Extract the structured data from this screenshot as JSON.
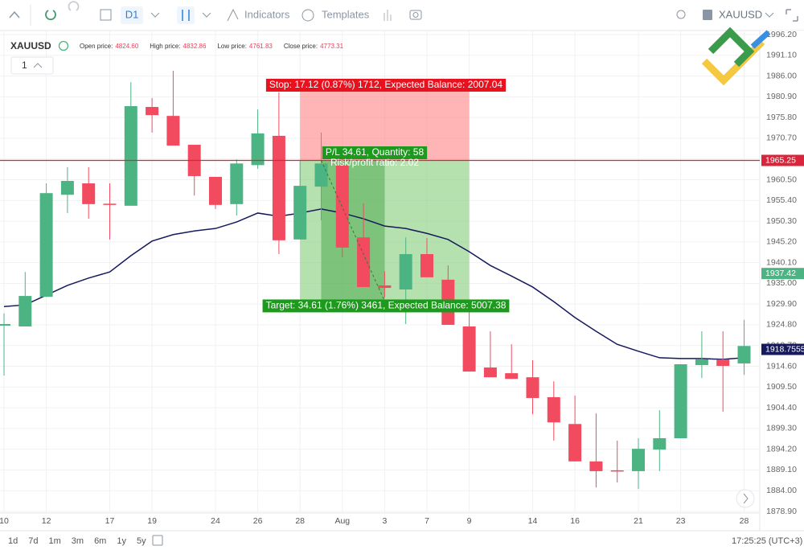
{
  "toolbar": {
    "timeframe": "D1",
    "indicators": "Indicators",
    "templates": "Templates",
    "symbol": "XAUUSD"
  },
  "header": {
    "symbol": "XAUUSD",
    "fields": [
      {
        "label": "Open price:",
        "value": "4824.60"
      },
      {
        "label": "High price:",
        "value": "4832.86"
      },
      {
        "label": "Low price:",
        "value": "4761.83"
      },
      {
        "label": "Close price:",
        "value": "4773.31"
      }
    ],
    "pane": "1"
  },
  "chart_data": {
    "type": "candlestick",
    "categories": [
      "10",
      null,
      "12",
      null,
      null,
      "17",
      null,
      "19",
      null,
      null,
      "24",
      null,
      "26",
      null,
      "28",
      null,
      "Aug",
      null,
      "3",
      null,
      "7",
      null,
      "9",
      null,
      null,
      "14",
      null,
      "16",
      null,
      null,
      "21",
      null,
      "23",
      null,
      null,
      "28"
    ],
    "open": [
      1924.6,
      1924.4,
      1931.7,
      1956.8,
      1959.6,
      1954.6,
      1954.1,
      1978.4,
      1976.2,
      1969.1,
      1961.2,
      1954.5,
      1964.1,
      1971.3,
      1945.8,
      1958.8,
      1964.1,
      1946.3,
      1934.5,
      1933.5,
      1942.2,
      1935.9,
      1924.4,
      1914.3,
      1912.9,
      1911.9,
      1907.0,
      1900.4,
      1891.2,
      1889.0,
      1888.8,
      1894.1,
      1896.9,
      1914.9,
      1916.3,
      1915.3
    ],
    "high": [
      1927.6,
      1937.8,
      1959.6,
      1963.6,
      1963.6,
      1959.6,
      1984.5,
      1980.6,
      1987.3,
      1969.1,
      1961.2,
      1965.5,
      1977.8,
      1982.0,
      1965.1,
      1972.1,
      1966.1,
      1954.7,
      1938.0,
      1946.3,
      1946.1,
      1939.4,
      1928.0,
      1923.2,
      1920.0,
      1916.1,
      1910.9,
      1907.4,
      1903.0,
      1896.3,
      1896.9,
      1903.8,
      1915.1,
      1923.2,
      1923.2,
      1926.0
    ],
    "low": [
      1912.3,
      1924.4,
      1931.7,
      1952.3,
      1950.9,
      1945.8,
      1954.1,
      1972.1,
      1968.9,
      1956.6,
      1953.3,
      1951.7,
      1963.2,
      1942.2,
      1945.8,
      1950.5,
      1941.4,
      1934.1,
      1931.5,
      1925.0,
      1936.5,
      1924.8,
      1913.3,
      1911.9,
      1911.5,
      1902.8,
      1896.3,
      1891.2,
      1884.8,
      1886.0,
      1884.4,
      1888.8,
      1896.9,
      1911.7,
      1903.4,
      1912.5
    ],
    "close": [
      1925.0,
      1931.9,
      1957.2,
      1960.2,
      1954.5,
      1954.3,
      1978.6,
      1976.4,
      1968.9,
      1961.4,
      1954.3,
      1964.5,
      1971.9,
      1945.6,
      1959.0,
      1964.5,
      1943.8,
      1934.1,
      1933.9,
      1942.2,
      1936.5,
      1924.8,
      1913.3,
      1911.9,
      1911.5,
      1906.8,
      1900.8,
      1891.2,
      1888.8,
      1888.7,
      1894.3,
      1896.9,
      1915.1,
      1916.3,
      1914.7,
      1919.6
    ],
    "up_color": "#4cb383",
    "down_color": "#f24a5e",
    "ma": {
      "color": "#16195c",
      "values": [
        1929.3,
        1929.7,
        1932.1,
        1934.5,
        1936.3,
        1937.8,
        1941.8,
        1945.4,
        1947.0,
        1947.9,
        1948.5,
        1950.1,
        1952.3,
        1951.5,
        1952.3,
        1953.3,
        1952.3,
        1950.9,
        1949.1,
        1948.5,
        1947.3,
        1945.8,
        1942.8,
        1939.4,
        1936.8,
        1934.1,
        1930.5,
        1926.6,
        1923.2,
        1920.0,
        1918.3,
        1916.7,
        1916.5,
        1916.5,
        1916.3,
        1916.7
      ]
    },
    "ylim": [
      1878.5,
      1997.2
    ],
    "yticks": [
      {
        "value": 1878.9,
        "label": "1878.90"
      },
      {
        "value": 1884,
        "label": "1884.00"
      },
      {
        "value": 1889.1,
        "label": "1889.10"
      },
      {
        "value": 1894.2,
        "label": "1894.20"
      },
      {
        "value": 1899.3,
        "label": "1899.30"
      },
      {
        "value": 1904.4,
        "label": "1904.40"
      },
      {
        "value": 1909.5,
        "label": "1909.50"
      },
      {
        "value": 1914.6,
        "label": "1914.60"
      },
      {
        "value": 1919.7,
        "label": "1919.70"
      },
      {
        "value": 1924.8,
        "label": "1924.80"
      },
      {
        "value": 1929.9,
        "label": "1929.90"
      },
      {
        "value": 1935,
        "label": "1935.00"
      },
      {
        "value": 1940.1,
        "label": "1940.10"
      },
      {
        "value": 1945.2,
        "label": "1945.20"
      },
      {
        "value": 1950.3,
        "label": "1950.30"
      },
      {
        "value": 1955.4,
        "label": "1955.40"
      },
      {
        "value": 1960.5,
        "label": "1960.50"
      },
      {
        "value": 1965.6,
        "label": "1965.60"
      },
      {
        "value": 1970.7,
        "label": "1970.70"
      },
      {
        "value": 1975.8,
        "label": "1975.80"
      },
      {
        "value": 1980.9,
        "label": "1980.90"
      },
      {
        "value": 1986,
        "label": "1986.00"
      },
      {
        "value": 1991.1,
        "label": "1991.10"
      },
      {
        "value": 1996.2,
        "label": "1996.20"
      }
    ],
    "grid": true,
    "price_line": {
      "value": 1965.25,
      "label": "1965.25",
      "color": "#d9243b"
    },
    "price_tags": [
      {
        "value": 1937.42,
        "label": "1937.42",
        "color": "#4cb383"
      },
      {
        "value": 1918.7555,
        "label": "1918.7555",
        "color": "#16195c"
      }
    ],
    "position": {
      "stop": 1982.37,
      "target": 1930.64,
      "stop_label": "Stop: 17.12 (0.87%) 1712, Expected Balance: 2007.04",
      "pl_label": "P/L 34.61, Quantity: 58",
      "ratio_label": "Risk/profit ratio: 2.02",
      "target_label": "Target: 34.61 (1.76%) 3461, Expected Balance: 5007.38"
    }
  },
  "footer": {
    "ranges": [
      "1d",
      "7d",
      "1m",
      "3m",
      "6m",
      "1y",
      "5y"
    ],
    "time": "17:25:25 (UTC+3)"
  }
}
